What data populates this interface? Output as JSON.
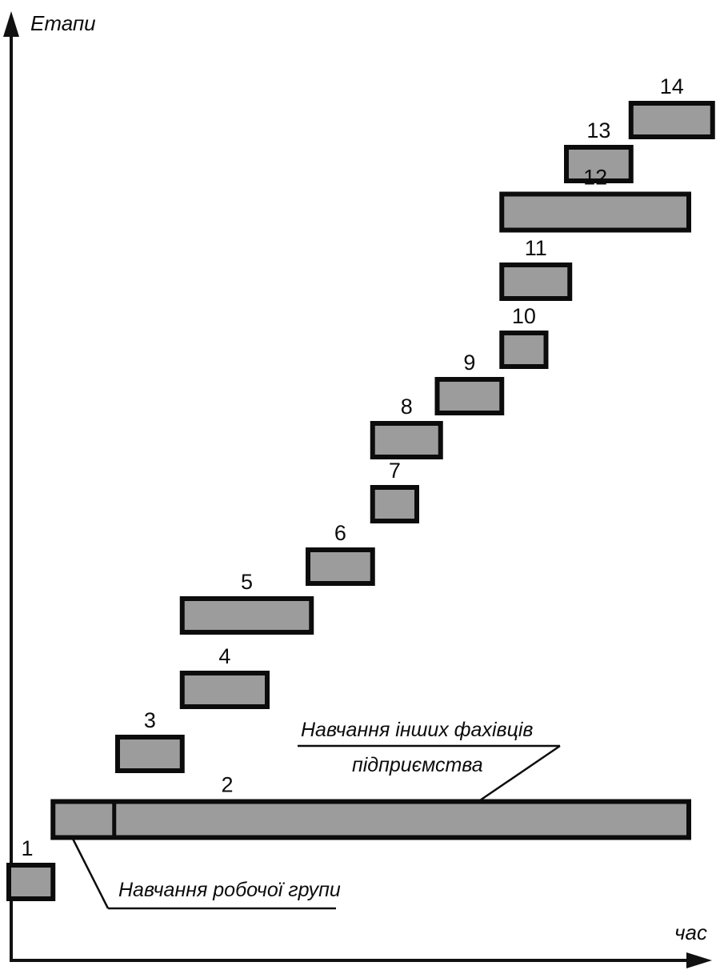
{
  "chart_data": {
    "type": "gantt",
    "ylabel": "Етапи",
    "xlabel": "час",
    "grid": false,
    "legend": "none",
    "fill_color": "#9c9c9c",
    "stroke_color": "#0c0c0c",
    "tasks": [
      {
        "label": "1",
        "start": 0.0,
        "end": 6.5
      },
      {
        "label": "2",
        "start": 6.5,
        "end": 100.0,
        "split": 15.5
      },
      {
        "label": "3",
        "start": 16.0,
        "end": 25.5
      },
      {
        "label": "4",
        "start": 25.5,
        "end": 38.0
      },
      {
        "label": "5",
        "start": 25.5,
        "end": 44.5
      },
      {
        "label": "6",
        "start": 44.0,
        "end": 53.5
      },
      {
        "label": "7",
        "start": 53.5,
        "end": 60.0
      },
      {
        "label": "8",
        "start": 53.5,
        "end": 63.5
      },
      {
        "label": "9",
        "start": 63.0,
        "end": 72.5
      },
      {
        "label": "10",
        "start": 72.5,
        "end": 79.0
      },
      {
        "label": "11",
        "start": 72.5,
        "end": 82.5
      },
      {
        "label": "12",
        "start": 72.5,
        "end": 100.0
      },
      {
        "label": "13",
        "start": 82.0,
        "end": 91.5
      },
      {
        "label": "14",
        "start": 91.5,
        "end": 103.5
      }
    ],
    "annotations": [
      {
        "text": "Навчання робочої групи",
        "target_task": "2",
        "target": 10.0
      },
      {
        "text_lines": [
          "Навчання інших фахівців",
          "підприємства"
        ],
        "target_task": "2",
        "target": 70.0
      }
    ]
  }
}
